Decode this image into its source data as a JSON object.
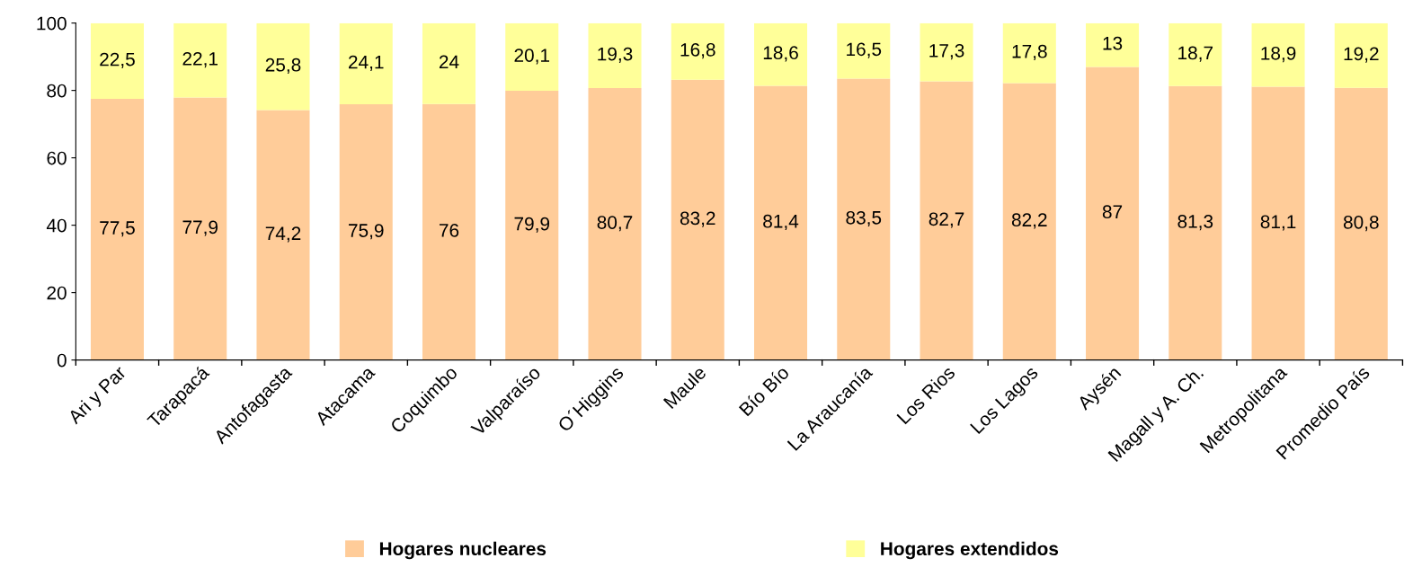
{
  "chart_data": {
    "type": "bar",
    "stacked": true,
    "categories": [
      "Ari y Par",
      "Tarapacá",
      "Antofagasta",
      "Atacama",
      "Coquimbo",
      "Valparaíso",
      "O´Higgins",
      "Maule",
      "Bío Bío",
      "La Araucanía",
      "Los Rios",
      "Los Lagos",
      "Aysén",
      "Magall y A. Ch.",
      "Metropolitana",
      "Promedio País"
    ],
    "series": [
      {
        "name": "Hogares nucleares",
        "color": "#ffcc99",
        "values": [
          77.5,
          77.9,
          74.2,
          75.9,
          76,
          79.9,
          80.7,
          83.2,
          81.4,
          83.5,
          82.7,
          82.2,
          87,
          81.3,
          81.1,
          80.8
        ],
        "value_labels": [
          "77,5",
          "77,9",
          "74,2",
          "75,9",
          "76",
          "79,9",
          "80,7",
          "83,2",
          "81,4",
          "83,5",
          "82,7",
          "82,2",
          "87",
          "81,3",
          "81,1",
          "80,8"
        ]
      },
      {
        "name": "Hogares extendidos",
        "color": "#ffff99",
        "values": [
          22.5,
          22.1,
          25.8,
          24.1,
          24,
          20.1,
          19.3,
          16.8,
          18.6,
          16.5,
          17.3,
          17.8,
          13,
          18.7,
          18.9,
          19.2
        ],
        "value_labels": [
          "22,5",
          "22,1",
          "25,8",
          "24,1",
          "24",
          "20,1",
          "19,3",
          "16,8",
          "18,6",
          "16,5",
          "17,3",
          "17,8",
          "13",
          "18,7",
          "18,9",
          "19,2"
        ]
      }
    ],
    "ylim": [
      0,
      100
    ],
    "yticks": [
      0,
      20,
      40,
      60,
      80,
      100
    ],
    "grid": false,
    "legend": "bottom"
  }
}
